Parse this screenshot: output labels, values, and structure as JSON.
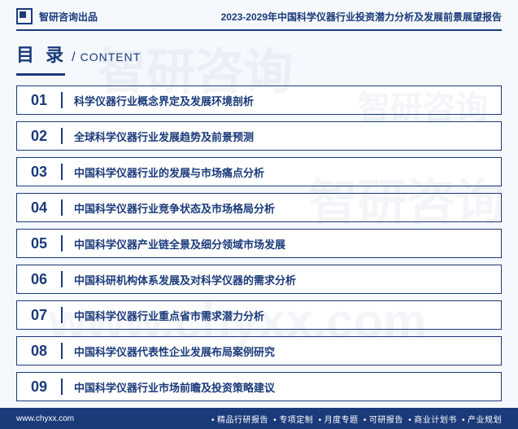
{
  "header": {
    "brand": "智研咨询出品",
    "report_title": "2023-2029年中国科学仪器行业投资潜力分析及发展前景展望报告"
  },
  "toc": {
    "title_cn": "目 录",
    "slash": "/",
    "title_en": "CONTENT",
    "items": [
      {
        "num": "01",
        "text": "科学仪器行业概念界定及发展环境剖析"
      },
      {
        "num": "02",
        "text": "全球科学仪器行业发展趋势及前景预测"
      },
      {
        "num": "03",
        "text": "中国科学仪器行业的发展与市场痛点分析"
      },
      {
        "num": "04",
        "text": "中国科学仪器行业竞争状态及市场格局分析"
      },
      {
        "num": "05",
        "text": "中国科学仪器产业链全景及细分领域市场发展"
      },
      {
        "num": "06",
        "text": "中国科研机构体系发展及对科学仪器的需求分析"
      },
      {
        "num": "07",
        "text": "中国科学仪器行业重点省市需求潜力分析"
      },
      {
        "num": "08",
        "text": "中国科学仪器代表性企业发展布局案例研究"
      },
      {
        "num": "09",
        "text": "中国科学仪器行业市场前瞻及投资策略建议"
      }
    ]
  },
  "footer": {
    "url": "www.chyxx.com",
    "items": [
      "精品行研报告",
      "专项定制",
      "月度专题",
      "可研报告",
      "商业计划书",
      "产业规划"
    ]
  },
  "watermark": {
    "text_cn": "智研咨询",
    "text_url": "www.chyxx.com"
  },
  "colors": {
    "primary": "#1a3a7a",
    "background": "#f5f8fc",
    "footer_bg": "#1a3a7a",
    "footer_text": "#ffffff"
  }
}
